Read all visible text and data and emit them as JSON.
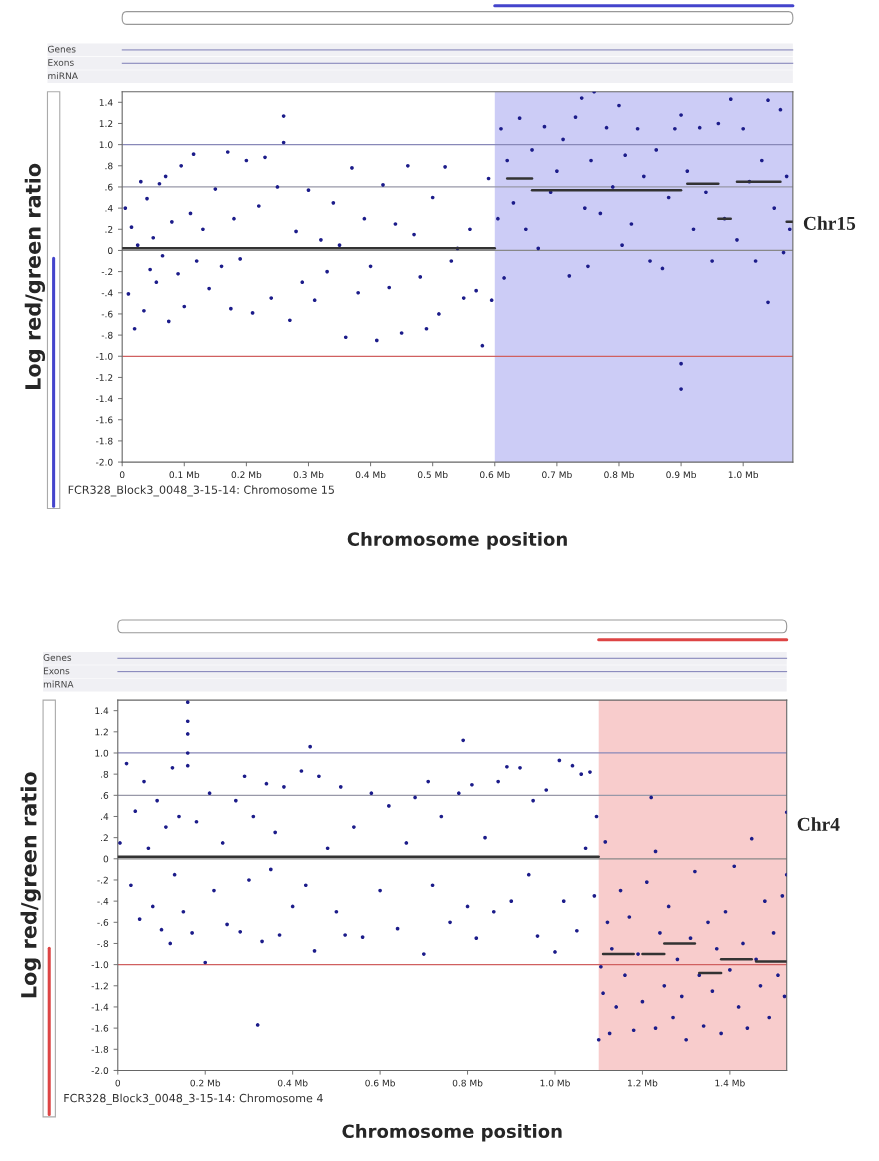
{
  "chart_data": [
    {
      "type": "scatter",
      "xlabel": "Chromosome position",
      "ylabel": "Log red/green ratio",
      "annotations": [
        "FCR328_Block3_0048_3-15-14: Chromosome 15",
        "Chr15",
        "Genes",
        "Exons",
        "miRNA"
      ],
      "xlim": [
        0,
        1.08
      ],
      "ylim": [
        -2.0,
        1.5
      ],
      "xticks": [
        0,
        {
          "value": 0.1,
          "label": "0.1 Mb"
        },
        {
          "value": 0.2,
          "label": "0.2 Mb"
        },
        {
          "value": 0.3,
          "label": "0.3 Mb"
        },
        {
          "value": 0.4,
          "label": "0.4 Mb"
        },
        {
          "value": 0.5,
          "label": "0.5 Mb"
        },
        {
          "value": 0.6,
          "label": "0.6 Mb"
        },
        {
          "value": 0.7,
          "label": "0.7 Mb"
        },
        {
          "value": 0.8,
          "label": "0.8 Mb"
        },
        {
          "value": 0.9,
          "label": "0.9 Mb"
        },
        {
          "value": 1.0,
          "label": "1.0 Mb"
        }
      ],
      "yticks": [
        1.4,
        1.2,
        {
          "value": 1.0,
          "label": "1.0"
        },
        {
          "value": 0.8,
          "label": ".8"
        },
        {
          "value": 0.6,
          "label": ".6"
        },
        {
          "value": 0.4,
          "label": ".4"
        },
        {
          "value": 0.2,
          "label": ".2"
        },
        0,
        {
          "value": -0.2,
          "label": "-.2"
        },
        {
          "value": -0.4,
          "label": "-.4"
        },
        {
          "value": -0.6,
          "label": "-.6"
        },
        {
          "value": -0.8,
          "label": "-.8"
        },
        {
          "value": -1.0,
          "label": "-1.0"
        },
        -1.2,
        -1.4,
        -1.6,
        -1.8,
        {
          "value": -2.0,
          "label": "-2.0"
        }
      ],
      "grid": false,
      "legend": false,
      "marker": "circle",
      "bands": [
        {
          "axis": "x",
          "from": 0.6,
          "to": 1.08,
          "color": "#ccccf6"
        }
      ],
      "ref_lines": [
        {
          "axis": "y",
          "value": 1.0,
          "color": "#8888b8"
        },
        {
          "axis": "y",
          "value": 0.6,
          "color": "#9898a8"
        },
        {
          "axis": "y",
          "value": 0,
          "color": "#888888"
        },
        {
          "axis": "y",
          "value": -1.0,
          "color": "#d06060"
        }
      ],
      "series": [
        {
          "color": "#1c1c8a",
          "x": [
            0.005,
            0.01,
            0.015,
            0.02,
            0.025,
            0.03,
            0.035,
            0.04,
            0.045,
            0.05,
            0.055,
            0.06,
            0.065,
            0.07,
            0.075,
            0.08,
            0.09,
            0.095,
            0.1,
            0.11,
            0.115,
            0.12,
            0.13,
            0.14,
            0.15,
            0.16,
            0.17,
            0.175,
            0.18,
            0.19,
            0.2,
            0.21,
            0.22,
            0.23,
            0.24,
            0.25,
            0.26,
            0.26,
            0.27,
            0.28,
            0.29,
            0.3,
            0.31,
            0.32,
            0.33,
            0.34,
            0.35,
            0.36,
            0.37,
            0.38,
            0.39,
            0.4,
            0.41,
            0.42,
            0.43,
            0.44,
            0.45,
            0.46,
            0.47,
            0.48,
            0.49,
            0.5,
            0.51,
            0.52,
            0.53,
            0.54,
            0.55,
            0.56,
            0.57,
            0.58,
            0.59,
            0.595,
            0.605,
            0.61,
            0.615,
            0.62,
            0.63,
            0.64,
            0.65,
            0.66,
            0.67,
            0.68,
            0.69,
            0.7,
            0.71,
            0.72,
            0.73,
            0.74,
            0.745,
            0.75,
            0.755,
            0.76,
            0.77,
            0.78,
            0.79,
            0.8,
            0.805,
            0.81,
            0.82,
            0.83,
            0.84,
            0.85,
            0.86,
            0.87,
            0.88,
            0.89,
            0.9,
            0.9,
            0.9,
            0.91,
            0.92,
            0.93,
            0.94,
            0.95,
            0.96,
            0.97,
            0.98,
            0.99,
            1.0,
            1.01,
            1.02,
            1.03,
            1.04,
            1.04,
            1.05,
            1.06,
            1.065,
            1.07,
            1.075
          ],
          "values": [
            0.4,
            -0.41,
            0.22,
            -0.74,
            0.05,
            0.65,
            -0.57,
            0.49,
            -0.18,
            0.12,
            -0.3,
            0.63,
            -0.05,
            0.7,
            -0.67,
            0.27,
            -0.22,
            0.8,
            -0.53,
            0.35,
            0.91,
            -0.1,
            0.2,
            -0.36,
            0.58,
            -0.15,
            0.93,
            -0.55,
            0.3,
            -0.08,
            0.85,
            -0.59,
            0.42,
            0.88,
            -0.45,
            0.6,
            1.27,
            1.02,
            -0.66,
            0.18,
            -0.3,
            0.57,
            -0.47,
            0.1,
            -0.2,
            0.45,
            0.05,
            -0.82,
            0.78,
            -0.4,
            0.3,
            -0.15,
            -0.85,
            0.62,
            -0.35,
            0.25,
            -0.78,
            0.8,
            0.15,
            -0.25,
            -0.74,
            0.5,
            -0.6,
            0.79,
            -0.1,
            0.02,
            -0.45,
            0.2,
            -0.38,
            -0.9,
            0.68,
            -0.47,
            0.3,
            1.15,
            -0.26,
            0.85,
            0.45,
            1.25,
            0.2,
            0.95,
            0.02,
            1.17,
            0.55,
            0.75,
            1.05,
            -0.24,
            1.26,
            1.44,
            0.4,
            -0.15,
            0.85,
            1.5,
            0.35,
            1.16,
            0.6,
            1.37,
            0.05,
            0.9,
            0.25,
            1.15,
            0.7,
            -0.1,
            0.95,
            -0.17,
            0.5,
            1.15,
            1.28,
            -1.07,
            -1.31,
            0.75,
            0.2,
            1.16,
            0.55,
            -0.1,
            1.2,
            0.3,
            1.43,
            0.1,
            1.15,
            0.65,
            -0.1,
            0.85,
            -0.49,
            1.42,
            0.4,
            1.33,
            -0.02,
            0.7,
            0.2
          ]
        },
        {
          "type": "line",
          "marker": "none",
          "color": "#333333",
          "x": [
            0,
            0.6
          ],
          "values": [
            0.02,
            0.02
          ]
        },
        {
          "type": "line",
          "marker": "none",
          "color": "#333333",
          "x": [
            0.62,
            0.66
          ],
          "values": [
            0.68,
            0.68
          ]
        },
        {
          "type": "line",
          "marker": "none",
          "color": "#333333",
          "x": [
            0.66,
            0.9
          ],
          "values": [
            0.57,
            0.57
          ]
        },
        {
          "type": "line",
          "marker": "none",
          "color": "#333333",
          "x": [
            0.91,
            0.96
          ],
          "values": [
            0.63,
            0.63
          ]
        },
        {
          "type": "line",
          "marker": "none",
          "color": "#333333",
          "x": [
            0.96,
            0.98
          ],
          "values": [
            0.3,
            0.3
          ]
        },
        {
          "type": "line",
          "marker": "none",
          "color": "#333333",
          "x": [
            0.99,
            1.06
          ],
          "values": [
            0.65,
            0.65
          ]
        },
        {
          "type": "line",
          "marker": "none",
          "color": "#333333",
          "x": [
            1.07,
            1.08
          ],
          "values": [
            0.27,
            0.27
          ]
        }
      ]
    },
    {
      "type": "scatter",
      "xlabel": "Chromosome position",
      "ylabel": "Log red/green ratio",
      "annotations": [
        "FCR328_Block3_0048_3-15-14: Chromosome 4",
        "Chr4",
        "Genes",
        "Exons",
        "miRNA"
      ],
      "xlim": [
        0,
        1.53
      ],
      "ylim": [
        -2.0,
        1.5
      ],
      "xticks": [
        0,
        {
          "value": 0.2,
          "label": "0.2 Mb"
        },
        {
          "value": 0.4,
          "label": "0.4 Mb"
        },
        {
          "value": 0.6,
          "label": "0.6 Mb"
        },
        {
          "value": 0.8,
          "label": "0.8 Mb"
        },
        {
          "value": 1.0,
          "label": "1.0 Mb"
        },
        {
          "value": 1.2,
          "label": "1.2 Mb"
        },
        {
          "value": 1.4,
          "label": "1.4 Mb"
        }
      ],
      "yticks": [
        1.4,
        1.2,
        {
          "value": 1.0,
          "label": "1.0"
        },
        {
          "value": 0.8,
          "label": ".8"
        },
        {
          "value": 0.6,
          "label": ".6"
        },
        {
          "value": 0.4,
          "label": ".4"
        },
        {
          "value": 0.2,
          "label": ".2"
        },
        0,
        {
          "value": -0.2,
          "label": "-.2"
        },
        {
          "value": -0.4,
          "label": "-.4"
        },
        {
          "value": -0.6,
          "label": "-.6"
        },
        {
          "value": -0.8,
          "label": "-.8"
        },
        {
          "value": -1.0,
          "label": "-1.0"
        },
        -1.2,
        -1.4,
        -1.6,
        -1.8,
        {
          "value": -2.0,
          "label": "-2.0"
        }
      ],
      "grid": false,
      "legend": false,
      "marker": "circle",
      "bands": [
        {
          "axis": "x",
          "from": 1.1,
          "to": 1.53,
          "color": "#f8cccc"
        }
      ],
      "ref_lines": [
        {
          "axis": "y",
          "value": 1.0,
          "color": "#8888b8"
        },
        {
          "axis": "y",
          "value": 0.6,
          "color": "#9898a8"
        },
        {
          "axis": "y",
          "value": 0,
          "color": "#888888"
        },
        {
          "axis": "y",
          "value": -1.0,
          "color": "#d06060"
        }
      ],
      "series": [
        {
          "color": "#1c1c8a",
          "x": [
            0.005,
            0.02,
            0.03,
            0.04,
            0.05,
            0.06,
            0.07,
            0.08,
            0.09,
            0.1,
            0.11,
            0.12,
            0.125,
            0.13,
            0.14,
            0.15,
            0.16,
            0.16,
            0.16,
            0.16,
            0.16,
            0.17,
            0.18,
            0.2,
            0.21,
            0.22,
            0.24,
            0.25,
            0.27,
            0.28,
            0.29,
            0.3,
            0.31,
            0.32,
            0.33,
            0.34,
            0.35,
            0.36,
            0.37,
            0.38,
            0.4,
            0.42,
            0.43,
            0.44,
            0.45,
            0.46,
            0.48,
            0.5,
            0.51,
            0.52,
            0.54,
            0.56,
            0.58,
            0.6,
            0.62,
            0.64,
            0.66,
            0.68,
            0.7,
            0.71,
            0.72,
            0.74,
            0.76,
            0.78,
            0.79,
            0.8,
            0.81,
            0.82,
            0.84,
            0.86,
            0.87,
            0.89,
            0.9,
            0.92,
            0.94,
            0.95,
            0.96,
            0.98,
            1.0,
            1.01,
            1.02,
            1.04,
            1.05,
            1.06,
            1.07,
            1.08,
            1.09,
            1.095,
            1.1,
            1.105,
            1.11,
            1.115,
            1.12,
            1.125,
            1.13,
            1.14,
            1.15,
            1.16,
            1.17,
            1.18,
            1.19,
            1.2,
            1.21,
            1.22,
            1.23,
            1.23,
            1.24,
            1.25,
            1.26,
            1.27,
            1.28,
            1.29,
            1.3,
            1.31,
            1.32,
            1.33,
            1.34,
            1.35,
            1.36,
            1.37,
            1.38,
            1.39,
            1.4,
            1.41,
            1.42,
            1.43,
            1.44,
            1.45,
            1.46,
            1.47,
            1.48,
            1.49,
            1.5,
            1.51,
            1.52,
            1.525,
            1.53,
            1.53
          ],
          "values": [
            0.15,
            0.9,
            -0.25,
            0.45,
            -0.57,
            0.73,
            0.1,
            -0.45,
            0.55,
            -0.67,
            0.3,
            -0.8,
            0.86,
            -0.15,
            0.4,
            -0.5,
            1.48,
            1.3,
            1.18,
            1.0,
            0.88,
            -0.7,
            0.35,
            -0.98,
            0.62,
            -0.3,
            0.15,
            -0.62,
            0.55,
            -0.69,
            0.78,
            -0.2,
            0.4,
            -1.57,
            -0.78,
            0.71,
            -0.1,
            0.25,
            -0.72,
            0.68,
            -0.45,
            0.83,
            -0.25,
            1.06,
            -0.87,
            0.78,
            0.1,
            -0.5,
            0.68,
            -0.72,
            0.3,
            -0.74,
            0.62,
            -0.3,
            0.5,
            -0.66,
            0.15,
            0.58,
            -0.9,
            0.73,
            -0.25,
            0.4,
            -0.6,
            0.62,
            1.12,
            -0.45,
            0.7,
            -0.75,
            0.2,
            -0.5,
            0.73,
            0.87,
            -0.4,
            0.86,
            -0.15,
            0.55,
            -0.73,
            0.65,
            -0.88,
            0.93,
            -0.4,
            0.88,
            -0.68,
            0.8,
            0.1,
            0.82,
            -0.35,
            0.4,
            -1.71,
            -1.02,
            -1.27,
            0.16,
            -0.6,
            -1.65,
            -0.85,
            -1.4,
            -0.3,
            -1.1,
            -0.55,
            -1.62,
            -0.9,
            -1.35,
            -0.22,
            0.58,
            0.07,
            -1.6,
            -0.7,
            -1.2,
            -0.45,
            -1.5,
            -0.95,
            -1.3,
            -1.71,
            -0.75,
            -0.12,
            -1.1,
            -1.58,
            -0.6,
            -1.25,
            -0.85,
            -1.65,
            -0.5,
            -1.05,
            -0.07,
            -1.4,
            -0.8,
            -1.6,
            0.19,
            -0.95,
            -1.2,
            -0.4,
            -1.5,
            -0.7,
            -1.1,
            -0.35,
            -1.3,
            0.44,
            -0.15
          ]
        },
        {
          "type": "line",
          "marker": "none",
          "color": "#333333",
          "x": [
            0,
            1.1
          ],
          "values": [
            0.02,
            0.02
          ]
        },
        {
          "type": "line",
          "marker": "none",
          "color": "#333333",
          "x": [
            1.11,
            1.18
          ],
          "values": [
            -0.9,
            -0.9
          ]
        },
        {
          "type": "line",
          "marker": "none",
          "color": "#333333",
          "x": [
            1.2,
            1.25
          ],
          "values": [
            -0.9,
            -0.9
          ]
        },
        {
          "type": "line",
          "marker": "none",
          "color": "#333333",
          "x": [
            1.25,
            1.32
          ],
          "values": [
            -0.8,
            -0.8
          ]
        },
        {
          "type": "line",
          "marker": "none",
          "color": "#333333",
          "x": [
            1.33,
            1.38
          ],
          "values": [
            -1.08,
            -1.08
          ]
        },
        {
          "type": "line",
          "marker": "none",
          "color": "#333333",
          "x": [
            1.38,
            1.45
          ],
          "values": [
            -0.95,
            -0.95
          ]
        },
        {
          "type": "line",
          "marker": "none",
          "color": "#333333",
          "x": [
            1.46,
            1.53
          ],
          "values": [
            -0.97,
            -0.97
          ]
        }
      ]
    }
  ]
}
